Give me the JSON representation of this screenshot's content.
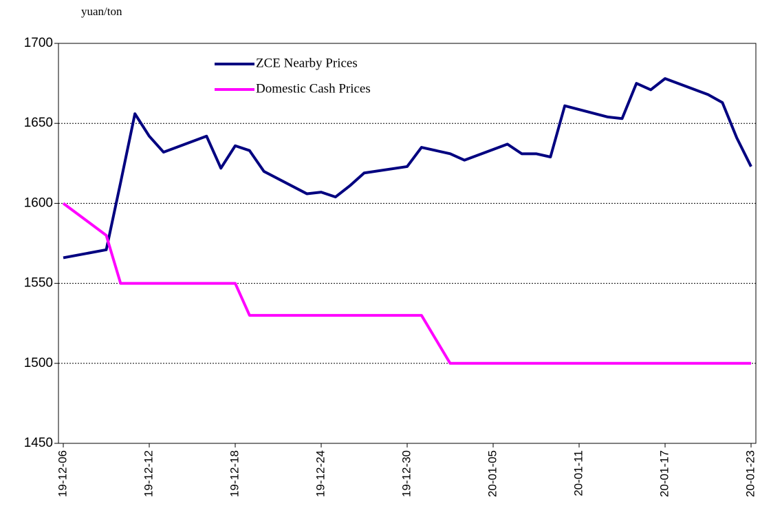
{
  "chart_data": {
    "type": "line",
    "unit_label": "yuan/ton",
    "x": [
      "19-12-06",
      "19-12-09",
      "19-12-10",
      "19-12-11",
      "19-12-12",
      "19-12-13",
      "19-12-16",
      "19-12-17",
      "19-12-18",
      "19-12-19",
      "19-12-20",
      "19-12-23",
      "19-12-24",
      "19-12-25",
      "19-12-26",
      "19-12-27",
      "19-12-30",
      "19-12-31",
      "20-01-02",
      "20-01-03",
      "20-01-06",
      "20-01-07",
      "20-01-08",
      "20-01-09",
      "20-01-10",
      "20-01-13",
      "20-01-14",
      "20-01-15",
      "20-01-16",
      "20-01-17",
      "20-01-20",
      "20-01-21",
      "20-01-22",
      "20-01-23"
    ],
    "series": [
      {
        "name": "ZCE Nearby Prices",
        "color": "#000080",
        "values": [
          1566,
          1571,
          1613,
          1656,
          1642,
          1632,
          1642,
          1622,
          1636,
          1633,
          1620,
          1606,
          1607,
          1604,
          1611,
          1619,
          1623,
          1635,
          1631,
          1627,
          1637,
          1631,
          1631,
          1629,
          1661,
          1654,
          1653,
          1675,
          1671,
          1678,
          1668,
          1663,
          1641,
          1623
        ]
      },
      {
        "name": "Domestic Cash Prices",
        "color": "#ff00ff",
        "values": [
          1600,
          1580,
          1550,
          1550,
          1550,
          1550,
          1550,
          1550,
          1550,
          1530,
          1530,
          1530,
          1530,
          1530,
          1530,
          1530,
          1530,
          1530,
          1500,
          1500,
          1500,
          1500,
          1500,
          1500,
          1500,
          1500,
          1500,
          1500,
          1500,
          1500,
          1500,
          1500,
          1500,
          1500
        ]
      }
    ],
    "xlim": [
      "19-12-06",
      "20-01-23"
    ],
    "xticks": [
      "19-12-06",
      "19-12-12",
      "19-12-18",
      "19-12-24",
      "19-12-30",
      "20-01-05",
      "20-01-11",
      "20-01-17",
      "20-01-23"
    ],
    "ylim": [
      1450,
      1700
    ],
    "yticks": [
      1450,
      1500,
      1550,
      1600,
      1650,
      1700
    ],
    "grid": true,
    "legend": "top-left"
  }
}
